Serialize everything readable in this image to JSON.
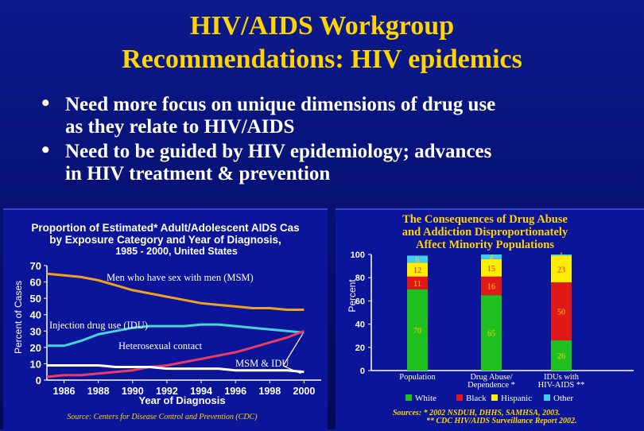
{
  "slide": {
    "title_line1": "HIV/AIDS Workgroup",
    "title_line2": "Recommendations: HIV epidemics",
    "bullets": [
      {
        "line1": "Need more focus on unique dimensions of drug use",
        "line2": "as they relate to HIV/AIDS"
      },
      {
        "line1": "Need to be guided by HIV epidemiology; advances",
        "line2": "in HIV treatment & prevention"
      }
    ],
    "bullet_glyph": "•"
  },
  "chart_data": [
    {
      "type": "line",
      "title_line1": "Proportion of Estimated* Adult/Adolescent AIDS Cas",
      "title_line2": "by Exposure Category and Year of Diagnosis,",
      "subtitle": "1985 - 2000, United States",
      "ylabel": "Percent of Cases",
      "xlabel": "Year of Diagnosis",
      "source": "Source: Centers for Disease Control and Prevention (CDC)",
      "ylim": [
        0,
        70
      ],
      "xlim": [
        1985,
        2001
      ],
      "yticks": [
        "0",
        "10",
        "20",
        "30",
        "40",
        "50",
        "60",
        "70"
      ],
      "xticks": [
        "1986",
        "1988",
        "1990",
        "1992",
        "1994",
        "1996",
        "1998",
        "2000"
      ],
      "series": [
        {
          "name": "Men who have sex with men (MSM)",
          "color": "#f0a020",
          "x": [
            1985,
            1986,
            1987,
            1988,
            1989,
            1990,
            1991,
            1992,
            1993,
            1994,
            1995,
            1996,
            1997,
            1998,
            1999,
            2000
          ],
          "y": [
            65,
            64,
            63,
            61,
            58,
            55,
            53,
            51,
            49,
            47,
            46,
            45,
            44,
            44,
            43,
            43
          ]
        },
        {
          "name": "Injection drug use (IDU)",
          "color": "#48d4d4",
          "x": [
            1985,
            1986,
            1987,
            1988,
            1989,
            1990,
            1991,
            1992,
            1993,
            1994,
            1995,
            1996,
            1997,
            1998,
            1999,
            2000
          ],
          "y": [
            21,
            21,
            24,
            28,
            30,
            32,
            33,
            33,
            33,
            34,
            34,
            33,
            32,
            31,
            30,
            29
          ]
        },
        {
          "name": "Heterosexual contact",
          "color": "#e83c64",
          "x": [
            1985,
            1986,
            1987,
            1988,
            1989,
            1990,
            1991,
            1992,
            1993,
            1994,
            1995,
            1996,
            1997,
            1998,
            1999,
            2000
          ],
          "y": [
            2,
            3,
            3,
            4,
            5,
            6,
            8,
            9,
            11,
            13,
            15,
            17,
            20,
            23,
            26,
            30
          ]
        },
        {
          "name": "MSM & IDU",
          "color": "#ffffff",
          "x": [
            1985,
            1986,
            1987,
            1988,
            1989,
            1990,
            1991,
            1992,
            1993,
            1994,
            1995,
            1996,
            1997,
            1998,
            1999,
            2000
          ],
          "y": [
            9,
            9,
            9,
            9,
            8,
            8,
            8,
            7,
            7,
            7,
            7,
            6,
            6,
            6,
            6,
            5
          ]
        }
      ]
    },
    {
      "type": "bar",
      "stacked": true,
      "title_line1": "The Consequences of Drug Abuse",
      "title_line2": "and Addiction Disproportionately",
      "title_line3": "Affect Minority Populations",
      "ylabel": "Percent",
      "ylim": [
        0,
        100
      ],
      "yticks": [
        "0",
        "20",
        "40",
        "60",
        "80",
        "100"
      ],
      "categories": [
        {
          "line1": "Population",
          "line2": ""
        },
        {
          "line1": "Drug Abuse/",
          "line2": "Dependence *"
        },
        {
          "line1": "IDUs with",
          "line2": "HIV-AIDS **"
        }
      ],
      "series": [
        {
          "name": "White",
          "color": "#20c020",
          "values": [
            70,
            65,
            26
          ]
        },
        {
          "name": "Black",
          "color": "#e01818",
          "values": [
            11,
            16,
            50
          ]
        },
        {
          "name": "Hispanic",
          "color": "#ffee00",
          "values": [
            12,
            15,
            23
          ]
        },
        {
          "name": "Other",
          "color": "#40ccf0",
          "values": [
            6,
            4,
            1
          ]
        }
      ],
      "source_line1": "Sources:  * 2002 NSDUH, DHHS, SAMHSA, 2003.",
      "source_line2": "** CDC  HIV/AIDS Surveillance Report 2002."
    }
  ]
}
